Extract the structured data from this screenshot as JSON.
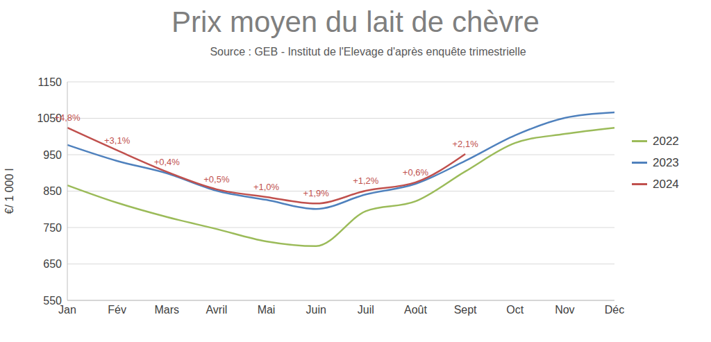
{
  "chart_data": {
    "type": "line",
    "title": "Prix moyen du lait de chèvre",
    "subtitle": "Source : GEB - Institut de l'Elevage d'après enquête trimestrielle",
    "y_label": "€/ 1 000 l",
    "categories": [
      "Jan",
      "Fév",
      "Mars",
      "Avril",
      "Mai",
      "Juin",
      "Juil",
      "Août",
      "Sept",
      "Oct",
      "Nov",
      "Déc"
    ],
    "series": [
      {
        "name": "2022",
        "color": "#9bbb59",
        "values": [
          866,
          818,
          779,
          746,
          712,
          699,
          795,
          822,
          904,
          982,
          1007,
          1024
        ]
      },
      {
        "name": "2023",
        "color": "#4f81bd",
        "values": [
          977,
          933,
          899,
          851,
          826,
          801,
          841,
          870,
          933,
          1003,
          1051,
          1066
        ]
      },
      {
        "name": "2024",
        "color": "#c0504d",
        "values": [
          1024,
          962,
          903,
          855,
          834,
          816,
          851,
          874,
          952,
          null,
          null,
          null
        ],
        "annotations": [
          "+4,8%",
          "+3,1%",
          "+0,4%",
          "+0,5%",
          "+1,0%",
          "+1,9%",
          "+1,2%",
          "+0,6%",
          "+2,1%",
          null,
          null,
          null
        ]
      }
    ],
    "ylim": [
      550,
      1150
    ],
    "yticks": [
      550,
      650,
      750,
      850,
      950,
      1050,
      1150
    ],
    "grid": true,
    "legend": "right"
  }
}
